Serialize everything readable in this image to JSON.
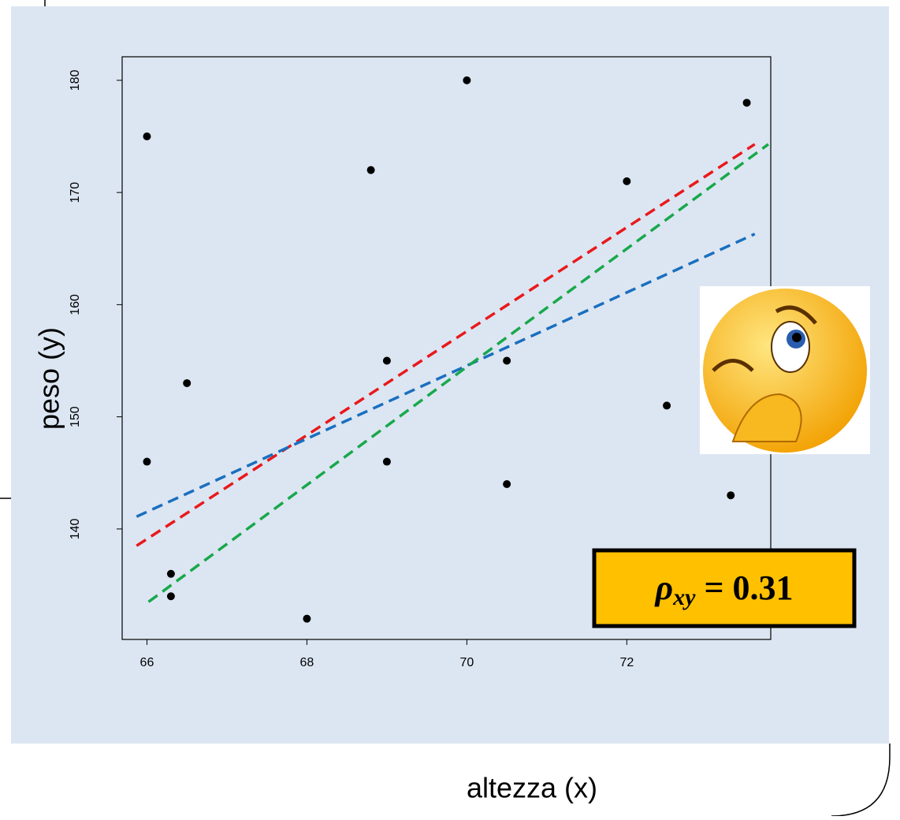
{
  "chart_data": {
    "type": "scatter",
    "x_label": "altezza (x)",
    "y_label": "peso (y)",
    "x": [
      66,
      66,
      66.3,
      66.3,
      66.5,
      68,
      68.8,
      69,
      69,
      70,
      70.5,
      70.5,
      72,
      72.5,
      73.3,
      73.5
    ],
    "y": [
      175,
      146,
      136,
      134,
      153,
      132,
      172,
      155,
      146,
      180,
      155,
      144,
      171,
      151,
      143,
      178
    ],
    "color": "#000000",
    "xlim": [
      65.69,
      73.8
    ],
    "ylim": [
      130.15,
      182.1
    ],
    "xticks": [
      66,
      68,
      70,
      72
    ],
    "yticks": [
      140,
      150,
      160,
      170,
      180
    ],
    "lines": [
      {
        "color": "#e8191c",
        "x": [
          65.87,
          73.6
        ],
        "y": [
          138.5,
          174.3
        ]
      },
      {
        "color": "#1a6fbf",
        "x": [
          65.87,
          73.6
        ],
        "y": [
          141.1,
          166.3
        ]
      },
      {
        "color": "#18a84b",
        "x": [
          66.02,
          73.77
        ],
        "y": [
          133.5,
          174.3
        ]
      }
    ],
    "annotation": {
      "symbol": "ρ",
      "sub": "xy",
      "rest": " = 0.31"
    }
  }
}
